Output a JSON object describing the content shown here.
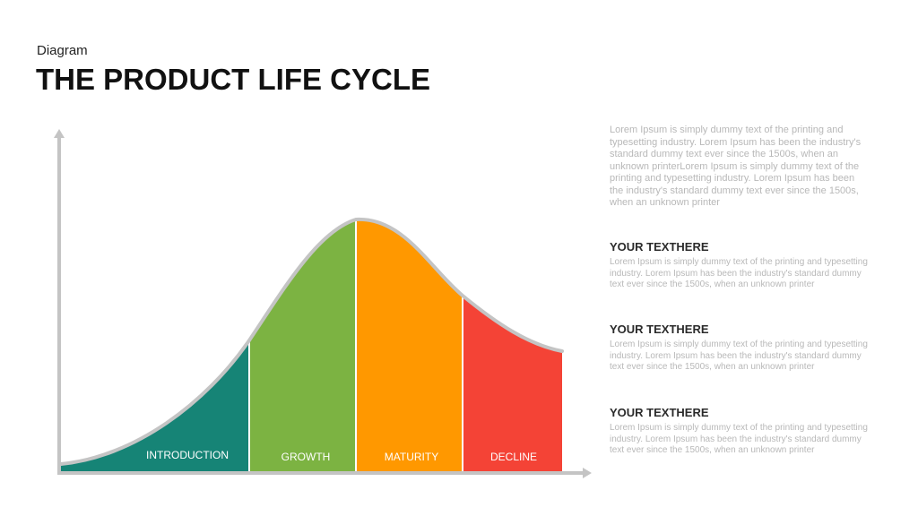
{
  "header": {
    "subtitle": "Diagram",
    "title": "THE PRODUCT LIFE CYCLE"
  },
  "diagram": {
    "stages": [
      {
        "label": "INTRODUCTION",
        "color": "#168476"
      },
      {
        "label": "GROWTH",
        "color": "#7cb342"
      },
      {
        "label": "MATURITY",
        "color": "#ff9800"
      },
      {
        "label": "DECLINE",
        "color": "#f44336"
      }
    ],
    "axis_color": "#c4c4c4",
    "curve_outline_color": "#c4c4c4"
  },
  "sidebar": {
    "intro": "Lorem Ipsum is simply dummy text of the printing and typesetting industry. Lorem Ipsum has been the industry's standard dummy text ever since the 1500s, when an unknown printerLorem Ipsum is simply dummy text of the printing and typesetting industry. Lorem Ipsum has been the industry's standard dummy text ever since the 1500s, when an unknown printer",
    "sections": [
      {
        "title": "YOUR TEXTHERE",
        "body": "Lorem Ipsum is simply dummy text of the printing and typesetting industry. Lorem Ipsum has been the industry's standard dummy text ever  since the 1500s, when an unknown  printer"
      },
      {
        "title": "YOUR TEXTHERE",
        "body": "Lorem Ipsum is simply dummy text of the printing and typesetting industry. Lorem Ipsum has been the industry's standard dummy text ever  since the 1500s, when an unknown  printer"
      },
      {
        "title": "YOUR TEXTHERE",
        "body": "Lorem Ipsum is simply dummy text of the printing and typesetting industry. Lorem Ipsum has been the industry's standard dummy text ever  since the 1500s, when an unknown  printer"
      }
    ]
  }
}
